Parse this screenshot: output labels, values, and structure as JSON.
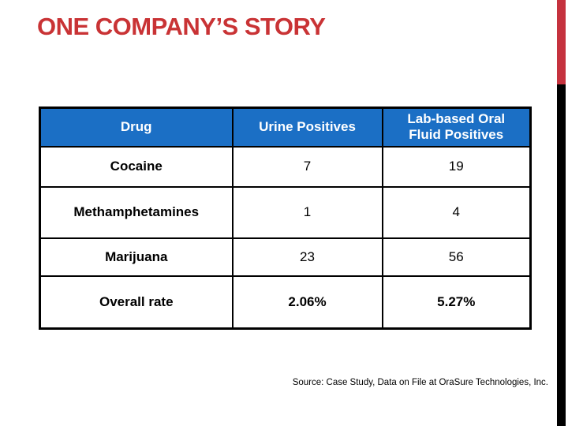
{
  "slide": {
    "title": "ONE COMPANY’S STORY",
    "source_note": "Source: Case Study, Data on File at OraSure Technologies, Inc."
  },
  "table": {
    "headers": [
      "Drug",
      "Urine Positives",
      "Lab-based Oral\nFluid Positives"
    ],
    "rows": [
      {
        "drug": "Cocaine",
        "urine_positives": "7",
        "oral_fluid_positives": "19"
      },
      {
        "drug": "Methamphetamines",
        "urine_positives": "1",
        "oral_fluid_positives": "4"
      },
      {
        "drug": "Marijuana",
        "urine_positives": "23",
        "oral_fluid_positives": "56"
      },
      {
        "drug": "Overall rate",
        "urine_positives": "2.06%",
        "oral_fluid_positives": "5.27%"
      }
    ]
  },
  "colors": {
    "title_red": "#C93335",
    "header_blue": "#1B6FC5",
    "accent_bar_red": "#C5323E",
    "accent_bar_black": "#000000",
    "table_border": "#000000"
  }
}
